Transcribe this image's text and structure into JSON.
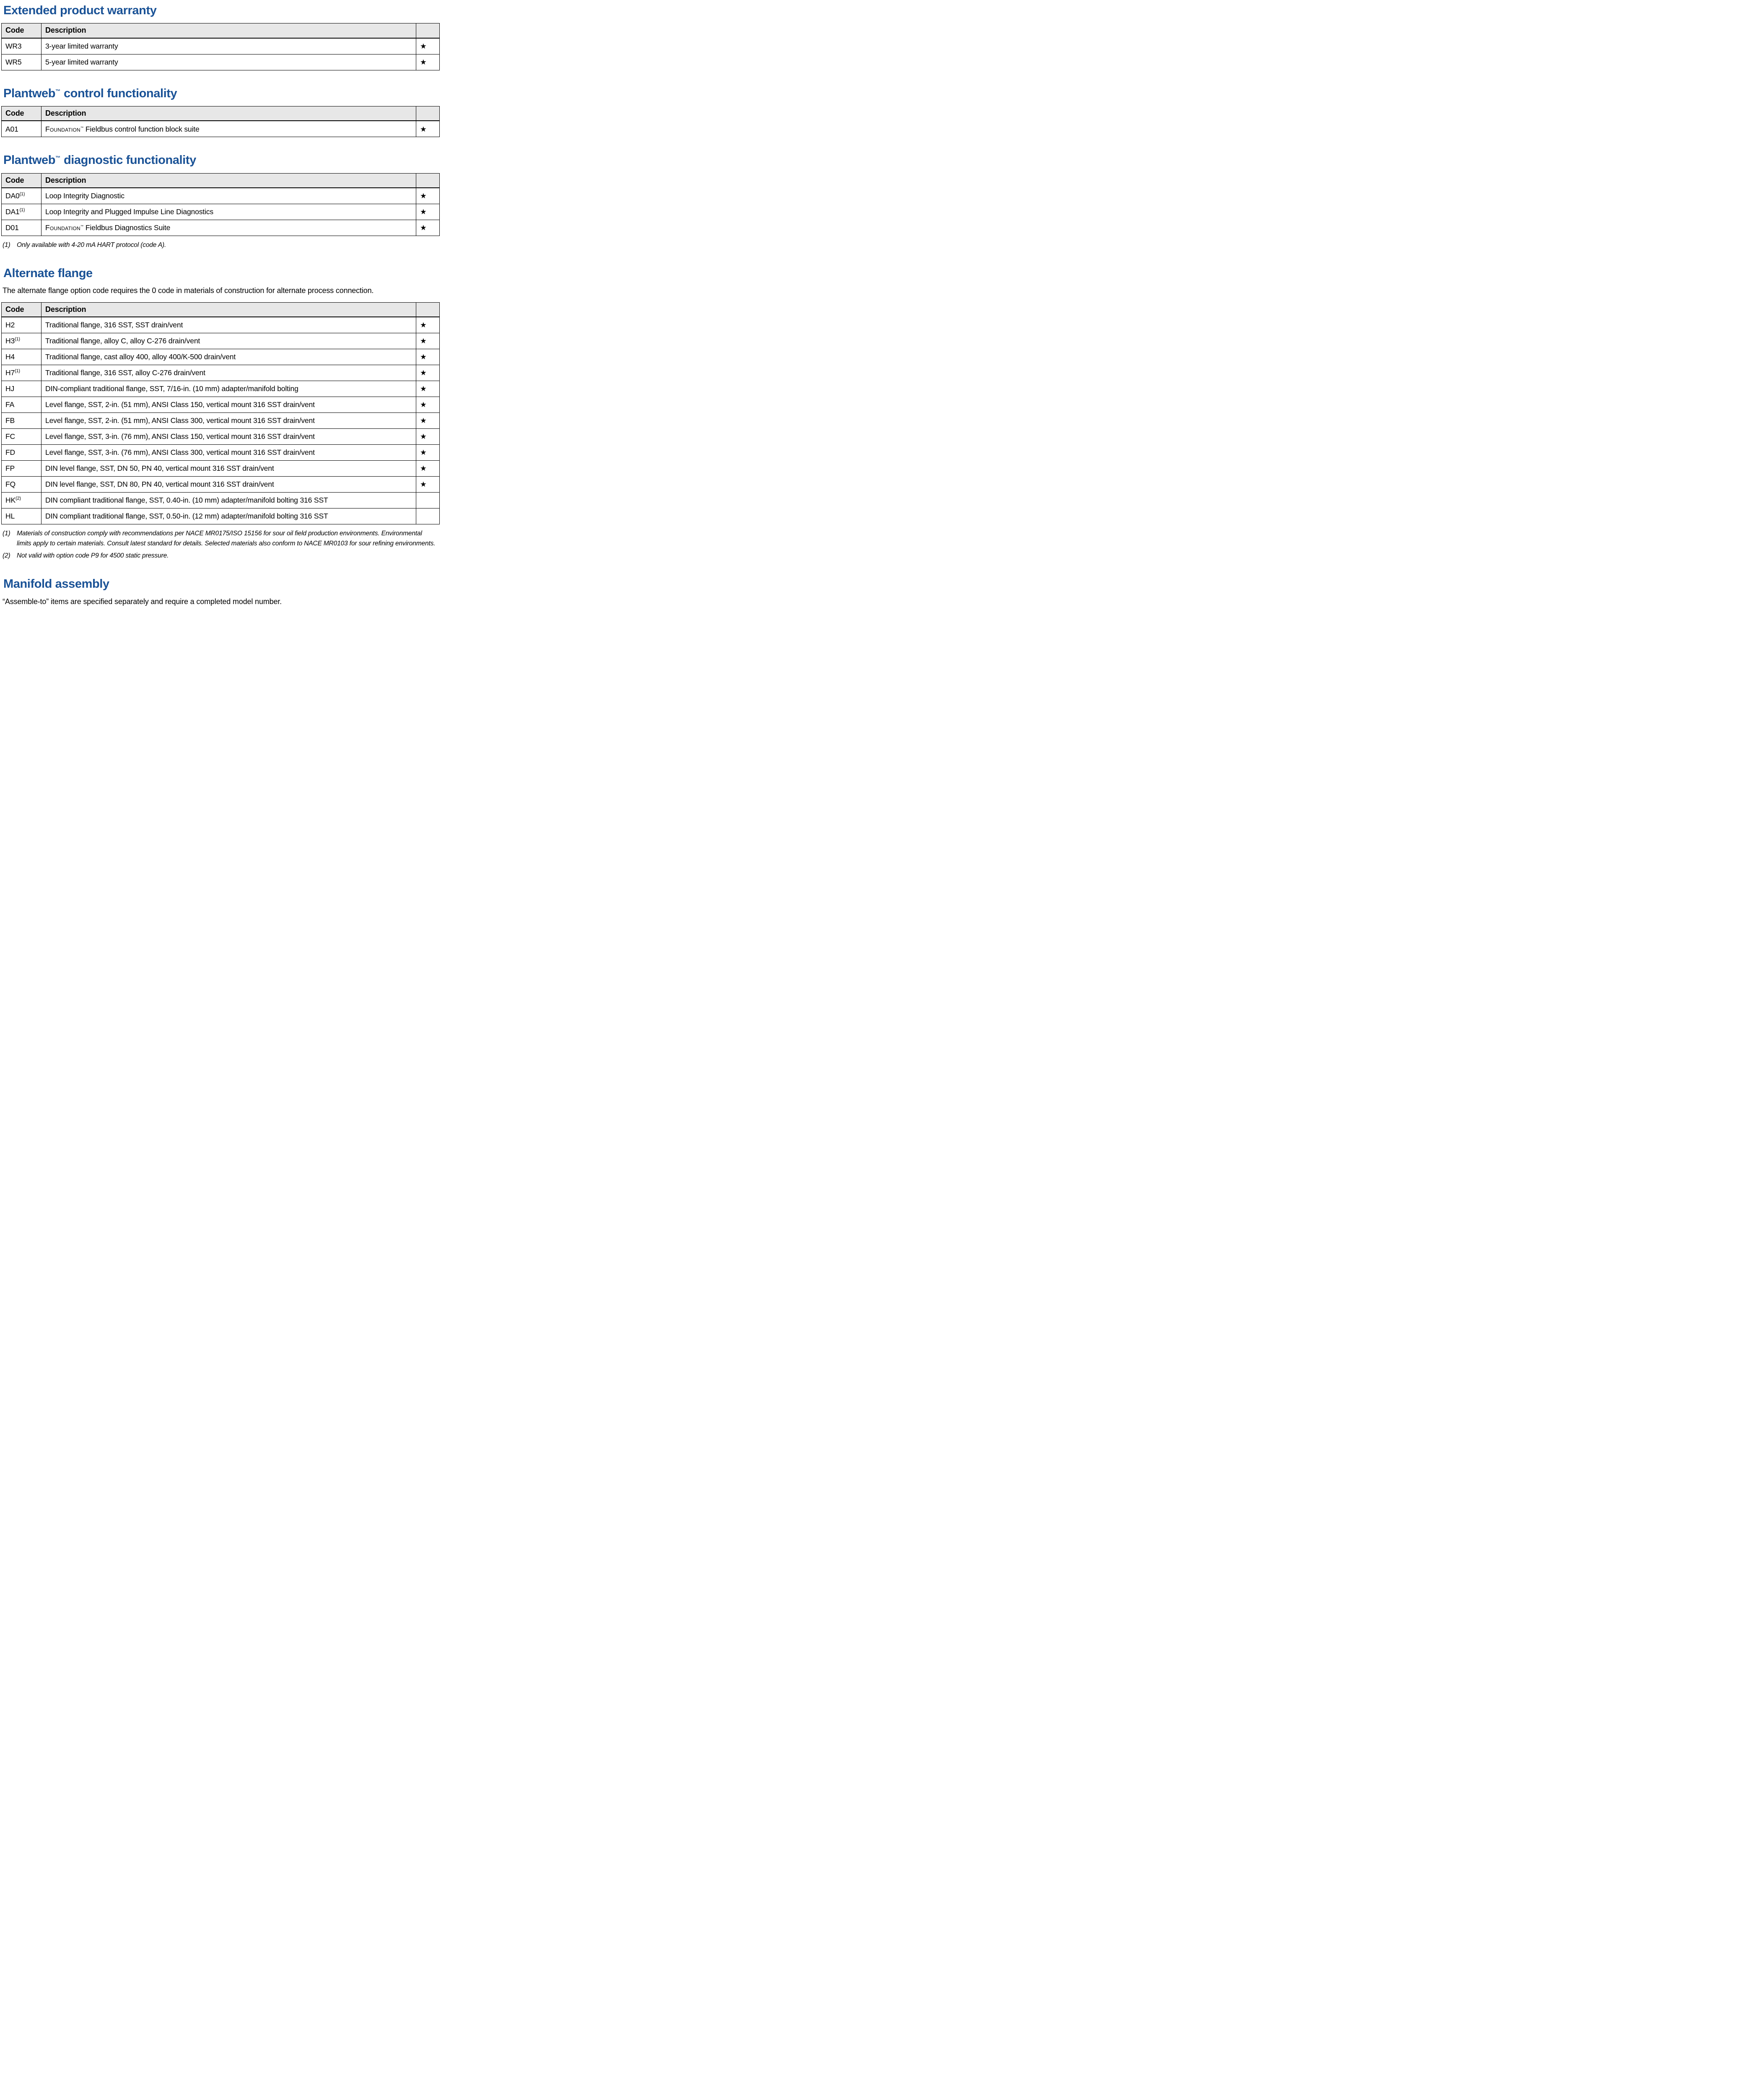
{
  "colors": {
    "accent": "#1A5296",
    "table_header_bg": "#E7E7E7",
    "border": "#000000"
  },
  "symbols": {
    "star": "★"
  },
  "warranty": {
    "title": "Extended product warranty",
    "table": {
      "col_code": "Code",
      "col_desc": "Description",
      "rows": [
        {
          "code": "WR3",
          "desc": "3-year limited warranty",
          "star": "★"
        },
        {
          "code": "WR5",
          "desc": "5-year limited warranty",
          "star": "★"
        }
      ]
    }
  },
  "control": {
    "title_brand": "Plantweb",
    "title_tm": "™",
    "title_rest": " control functionality",
    "table": {
      "col_code": "Code",
      "col_desc": "Description",
      "rows": [
        {
          "code": "A01",
          "desc_brand": "Foundation",
          "desc_tm": "™",
          "desc_rest": " Fieldbus control function block suite",
          "star": "★"
        }
      ]
    }
  },
  "diagnostic": {
    "title_brand": "Plantweb",
    "title_tm": "™",
    "title_rest": " diagnostic functionality",
    "table": {
      "col_code": "Code",
      "col_desc": "Description",
      "rows": [
        {
          "code": "DA0",
          "code_sup": "(1)",
          "desc": "Loop Integrity Diagnostic",
          "star": "★"
        },
        {
          "code": "DA1",
          "code_sup": "(1)",
          "desc": "Loop Integrity and Plugged Impulse Line Diagnostics",
          "star": "★"
        },
        {
          "code": "D01",
          "desc_brand": "Foundation",
          "desc_tm": "™",
          "desc_rest": " Fieldbus Diagnostics Suite",
          "star": "★"
        }
      ]
    },
    "footnotes": [
      {
        "num": "(1)",
        "text": "Only available with 4-20 mA HART protocol (code A)."
      }
    ]
  },
  "alternate": {
    "title": "Alternate flange",
    "intro": "The alternate flange option code requires the 0 code in materials of construction for alternate process connection.",
    "table": {
      "col_code": "Code",
      "col_desc": "Description",
      "rows": [
        {
          "code": "H2",
          "desc": "Traditional flange, 316 SST, SST drain/vent",
          "star": "★"
        },
        {
          "code": "H3",
          "code_sup": "(1)",
          "desc": "Traditional flange, alloy C, alloy C-276 drain/vent",
          "star": "★"
        },
        {
          "code": "H4",
          "desc": "Traditional flange, cast alloy 400, alloy 400/K-500 drain/vent",
          "star": "★"
        },
        {
          "code": "H7",
          "code_sup": "(1)",
          "desc": "Traditional flange, 316 SST, alloy C-276 drain/vent",
          "star": "★"
        },
        {
          "code": "HJ",
          "desc": "DIN-compliant traditional flange, SST, 7/16-in. (10 mm) adapter/manifold bolting",
          "star": "★"
        },
        {
          "code": "FA",
          "desc": "Level flange, SST, 2-in. (51 mm), ANSI Class 150, vertical mount 316 SST drain/vent",
          "star": "★"
        },
        {
          "code": "FB",
          "desc": "Level flange, SST, 2-in. (51 mm), ANSI Class 300, vertical mount 316 SST drain/vent",
          "star": "★"
        },
        {
          "code": "FC",
          "desc": "Level flange, SST, 3-in. (76 mm), ANSI Class 150, vertical mount 316 SST drain/vent",
          "star": "★"
        },
        {
          "code": "FD",
          "desc": "Level flange, SST, 3-in. (76 mm), ANSI Class 300, vertical mount 316 SST drain/vent",
          "star": "★"
        },
        {
          "code": "FP",
          "desc": "DIN level flange, SST, DN 50, PN 40, vertical mount 316 SST drain/vent",
          "star": "★"
        },
        {
          "code": "FQ",
          "desc": "DIN level flange, SST, DN 80, PN 40, vertical mount 316 SST drain/vent",
          "star": "★"
        },
        {
          "code": "HK",
          "code_sup": "(2)",
          "desc": "DIN compliant traditional flange, SST, 0.40-in. (10 mm) adapter/manifold bolting 316 SST",
          "star": ""
        },
        {
          "code": "HL",
          "desc": "DIN compliant traditional flange, SST, 0.50-in. (12 mm) adapter/manifold bolting 316 SST",
          "star": ""
        }
      ]
    },
    "footnotes": [
      {
        "num": "(1)",
        "text": "Materials of construction comply with recommendations per NACE MR0175/ISO 15156 for sour oil field production environments. Environmental limits apply to certain materials. Consult latest standard for details. Selected materials also conform to NACE MR0103 for sour refining environments."
      },
      {
        "num": "(2)",
        "text": "Not valid with option code P9 for 4500 static pressure."
      }
    ]
  },
  "manifold": {
    "title": "Manifold assembly",
    "intro": "“Assemble-to” items are specified separately and require a completed model number."
  }
}
